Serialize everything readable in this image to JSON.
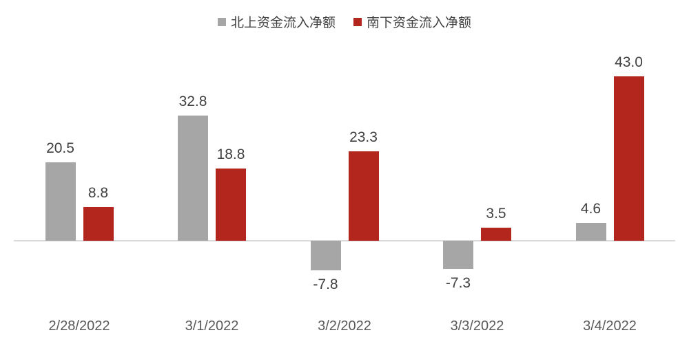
{
  "chart_data": {
    "type": "bar",
    "categories": [
      "2/28/2022",
      "3/1/2022",
      "3/2/2022",
      "3/3/2022",
      "3/4/2022"
    ],
    "series": [
      {
        "name": "北上资金流入净额",
        "color": "#a6a6a6",
        "values": [
          20.5,
          32.8,
          -7.8,
          -7.3,
          4.6
        ]
      },
      {
        "name": "南下资金流入净额",
        "color": "#b2261d",
        "values": [
          8.8,
          18.8,
          23.3,
          3.5,
          43.0
        ]
      }
    ],
    "title": "",
    "xlabel": "",
    "ylabel": "",
    "ylim": [
      -16,
      52
    ],
    "grid": false,
    "legend_position": "top-center",
    "data_labels": true,
    "label_format": "one-decimal",
    "colors": {
      "axis_line": "#d9d9d9",
      "value_label_text": "#404040",
      "axis_label_text": "#595959",
      "background": "#ffffff"
    }
  }
}
